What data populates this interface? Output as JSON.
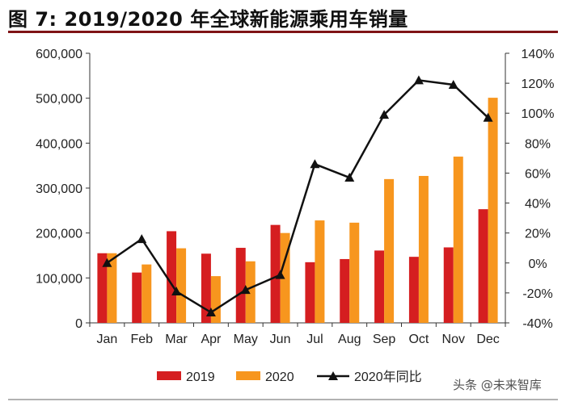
{
  "title": "图 7: 2019/2020 年全球新能源乘用车销量",
  "watermark": "头条 @未来智库",
  "colors": {
    "s2019": "#d51e20",
    "s2020": "#f7961e",
    "yoy": "#111111",
    "title_rule": "#7f1416"
  },
  "chart_data": {
    "type": "bar",
    "categories": [
      "Jan",
      "Feb",
      "Mar",
      "Apr",
      "May",
      "Jun",
      "Jul",
      "Aug",
      "Sep",
      "Oct",
      "Nov",
      "Dec"
    ],
    "series": [
      {
        "name": "2019",
        "type": "bar",
        "axis": "left",
        "values": [
          155000,
          112000,
          204000,
          154000,
          167000,
          218000,
          135000,
          142000,
          161000,
          147000,
          168000,
          253000
        ]
      },
      {
        "name": "2020",
        "type": "bar",
        "axis": "left",
        "values": [
          155000,
          130000,
          166000,
          104000,
          137000,
          200000,
          228000,
          223000,
          320000,
          327000,
          370000,
          501000
        ]
      },
      {
        "name": "2020年同比",
        "type": "line",
        "axis": "right",
        "marker": "triangle",
        "values": [
          0,
          16,
          -19,
          -33,
          -18,
          -8,
          66,
          57,
          99,
          122,
          119,
          97
        ]
      }
    ],
    "y_left": {
      "min": 0,
      "max": 600000,
      "step": 100000,
      "ticks": [
        "0",
        "100,000",
        "200,000",
        "300,000",
        "400,000",
        "500,000",
        "600,000"
      ]
    },
    "y_right": {
      "min": -40,
      "max": 140,
      "step": 20,
      "ticks": [
        "-40%",
        "-20%",
        "0%",
        "20%",
        "40%",
        "60%",
        "80%",
        "100%",
        "120%",
        "140%"
      ]
    },
    "legend": {
      "position": "bottom-center",
      "entries": [
        {
          "label": "2019",
          "kind": "bar"
        },
        {
          "label": "2020",
          "kind": "bar"
        },
        {
          "label": "2020年同比",
          "kind": "line"
        }
      ]
    },
    "grid": false
  }
}
